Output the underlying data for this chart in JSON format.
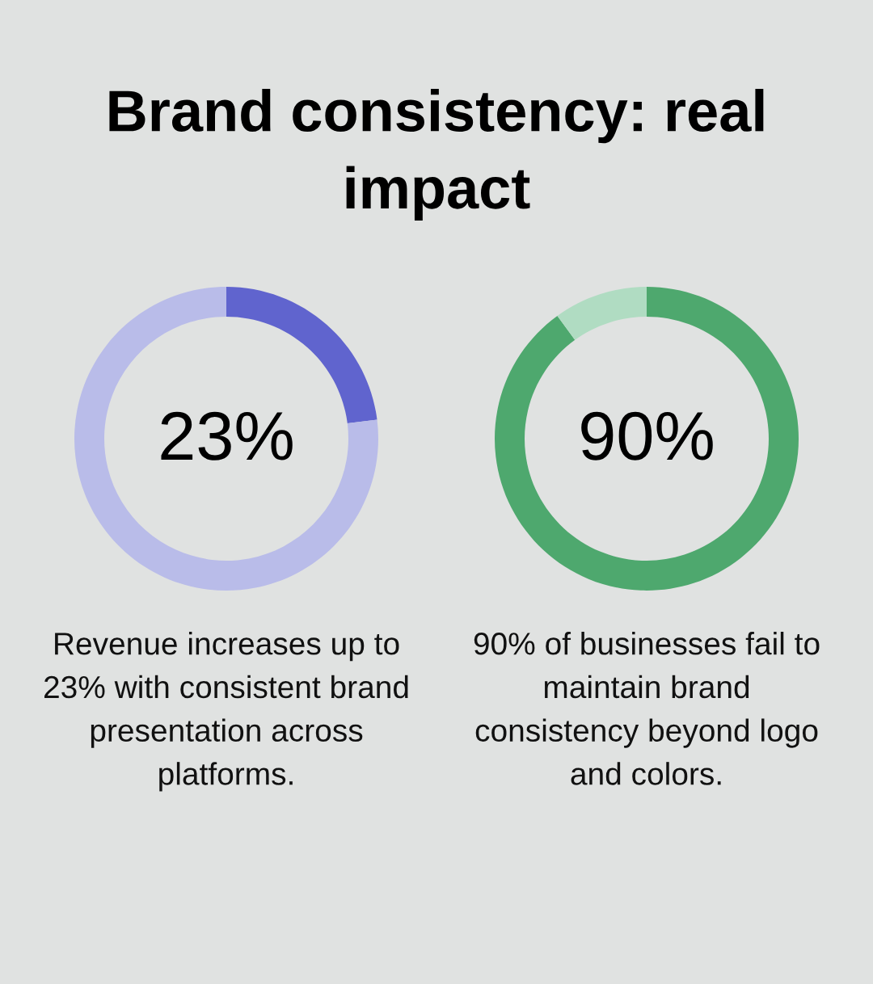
{
  "chart_data": [
    {
      "type": "donut",
      "title": "Brand consistency: real impact",
      "categories": [
        null,
        null
      ],
      "values": [
        23,
        77
      ],
      "colors": [
        "#6064ce",
        "#b9bce9"
      ],
      "value_labels": [
        "23%",
        null
      ],
      "annotations": [
        "Revenue increases up to 23% with consistent brand presentation across platforms."
      ]
    },
    {
      "type": "donut",
      "categories": [
        null,
        null
      ],
      "values": [
        90,
        10
      ],
      "colors": [
        "#4ea86e",
        "#b0dcc2"
      ],
      "value_labels": [
        "90%",
        null
      ],
      "annotations": [
        "90% of businesses fail to maintain brand consistency beyond logo and colors."
      ]
    }
  ]
}
